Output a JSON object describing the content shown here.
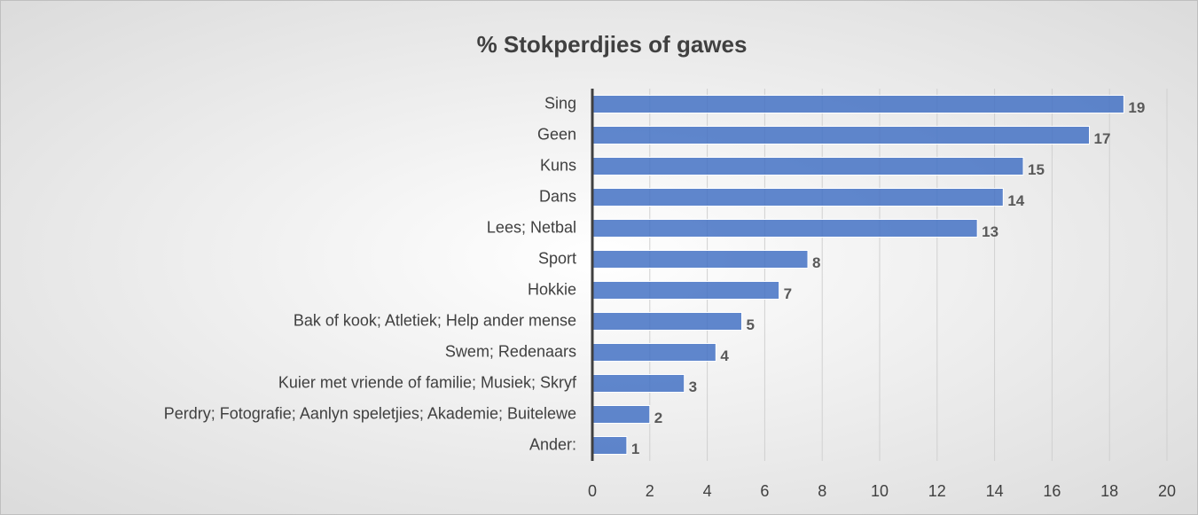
{
  "chart_data": {
    "type": "bar",
    "orientation": "horizontal",
    "title": "% Stokperdjies of gawes",
    "categories": [
      "Sing",
      "Geen",
      "Kuns",
      "Dans",
      "Lees; Netbal",
      "Sport",
      "Hokkie",
      "Bak of kook; Atletiek; Help ander mense",
      "Swem; Redenaars",
      "Kuier met vriende of familie; Musiek; Skryf",
      "Perdry; Fotografie; Aanlyn speletjies; Akademie; Buitelewe",
      "Ander:"
    ],
    "values": [
      18.5,
      17.3,
      15.0,
      14.3,
      13.4,
      7.5,
      6.5,
      5.2,
      4.3,
      3.2,
      2.0,
      1.2
    ],
    "value_labels": [
      "19",
      "17",
      "15",
      "14",
      "13",
      "8",
      "7",
      "5",
      "4",
      "3",
      "2",
      "1"
    ],
    "color": "#4472c4",
    "xlim": [
      0,
      20
    ],
    "xticks": [
      0,
      2,
      4,
      6,
      8,
      10,
      12,
      14,
      16,
      18,
      20
    ],
    "grid": true
  }
}
